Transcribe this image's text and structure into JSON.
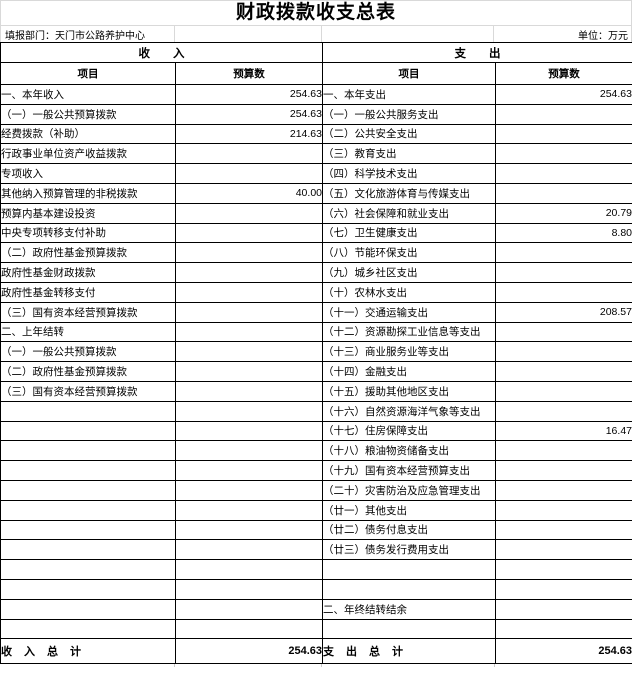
{
  "title": "财政拨款收支总表",
  "meta": {
    "department_label": "填报部门：天门市公路养护中心",
    "unit_label": "单位：万元"
  },
  "sections": {
    "income": {
      "header": "收入",
      "col_item": "项目",
      "col_budget": "预算数",
      "rows": [
        {
          "label": "一、本年收入",
          "value": "254.63",
          "level": 1
        },
        {
          "label": "（一）一般公共预算拨款",
          "value": "254.63",
          "level": 2
        },
        {
          "label": "经费拨款（补助）",
          "value": "214.63",
          "level": 3
        },
        {
          "label": "行政事业单位资产收益拨款",
          "value": "",
          "level": 3
        },
        {
          "label": "专项收入",
          "value": "",
          "level": 3
        },
        {
          "label": "其他纳入预算管理的非税拨款",
          "value": "40.00",
          "level": 3
        },
        {
          "label": "预算内基本建设投资",
          "value": "",
          "level": 3
        },
        {
          "label": "中央专项转移支付补助",
          "value": "",
          "level": 3
        },
        {
          "label": "（二）政府性基金预算拨款",
          "value": "",
          "level": 2
        },
        {
          "label": "政府性基金财政拨款",
          "value": "",
          "level": 3
        },
        {
          "label": "政府性基金转移支付",
          "value": "",
          "level": 3
        },
        {
          "label": "（三）国有资本经营预算拨款",
          "value": "",
          "level": 2
        },
        {
          "label": "二、上年结转",
          "value": "",
          "level": 1
        },
        {
          "label": "（一）一般公共预算拨款",
          "value": "",
          "level": 2
        },
        {
          "label": "（二）政府性基金预算拨款",
          "value": "",
          "level": 2
        },
        {
          "label": "（三）国有资本经营预算拨款",
          "value": "",
          "level": 2
        },
        {
          "label": "",
          "value": "",
          "level": 1
        },
        {
          "label": "",
          "value": "",
          "level": 1
        },
        {
          "label": "",
          "value": "",
          "level": 1
        },
        {
          "label": "",
          "value": "",
          "level": 1
        },
        {
          "label": "",
          "value": "",
          "level": 1
        },
        {
          "label": "",
          "value": "",
          "level": 1
        },
        {
          "label": "",
          "value": "",
          "level": 1
        },
        {
          "label": "",
          "value": "",
          "level": 1
        },
        {
          "label": "",
          "value": "",
          "level": 1
        },
        {
          "label": "",
          "value": "",
          "level": 1
        },
        {
          "label": "",
          "value": "",
          "level": 1
        },
        {
          "label": "",
          "value": "",
          "level": 1
        }
      ],
      "total_label": "收入总计",
      "total_value": "254.63"
    },
    "expense": {
      "header": "支出",
      "col_item": "项目",
      "col_budget": "预算数",
      "rows": [
        {
          "label": "一、本年支出",
          "value": "254.63",
          "level": 1
        },
        {
          "label": "（一）一般公共服务支出",
          "value": "",
          "level": 2
        },
        {
          "label": "（二）公共安全支出",
          "value": "",
          "level": 2
        },
        {
          "label": "（三）教育支出",
          "value": "",
          "level": 2
        },
        {
          "label": "（四）科学技术支出",
          "value": "",
          "level": 2
        },
        {
          "label": "（五）文化旅游体育与传媒支出",
          "value": "",
          "level": 2
        },
        {
          "label": "（六）社会保障和就业支出",
          "value": "20.79",
          "level": 2
        },
        {
          "label": "（七）卫生健康支出",
          "value": "8.80",
          "level": 2
        },
        {
          "label": "（八）节能环保支出",
          "value": "",
          "level": 2
        },
        {
          "label": "（九）城乡社区支出",
          "value": "",
          "level": 2
        },
        {
          "label": "（十）农林水支出",
          "value": "",
          "level": 2
        },
        {
          "label": "（十一）交通运输支出",
          "value": "208.57",
          "level": 2
        },
        {
          "label": "（十二）资源勘探工业信息等支出",
          "value": "",
          "level": 2
        },
        {
          "label": "（十三）商业服务业等支出",
          "value": "",
          "level": 2
        },
        {
          "label": "（十四）金融支出",
          "value": "",
          "level": 2
        },
        {
          "label": "（十五）援助其他地区支出",
          "value": "",
          "level": 2
        },
        {
          "label": "（十六）自然资源海洋气象等支出",
          "value": "",
          "level": 2
        },
        {
          "label": "（十七）住房保障支出",
          "value": "16.47",
          "level": 2
        },
        {
          "label": "（十八）粮油物资储备支出",
          "value": "",
          "level": 2
        },
        {
          "label": "（十九）国有资本经营预算支出",
          "value": "",
          "level": 2
        },
        {
          "label": "（二十）灾害防治及应急管理支出",
          "value": "",
          "level": 2
        },
        {
          "label": "（廿一）其他支出",
          "value": "",
          "level": 2
        },
        {
          "label": "（廿二）债务付息支出",
          "value": "",
          "level": 2
        },
        {
          "label": "（廿三）债务发行费用支出",
          "value": "",
          "level": 2
        },
        {
          "label": "",
          "value": "",
          "level": 1
        },
        {
          "label": "",
          "value": "",
          "level": 1
        },
        {
          "label": "二、年终结转结余",
          "value": "",
          "level": 1
        },
        {
          "label": "",
          "value": "",
          "level": 1
        }
      ],
      "total_label": "支出总计",
      "total_value": "254.63"
    }
  }
}
